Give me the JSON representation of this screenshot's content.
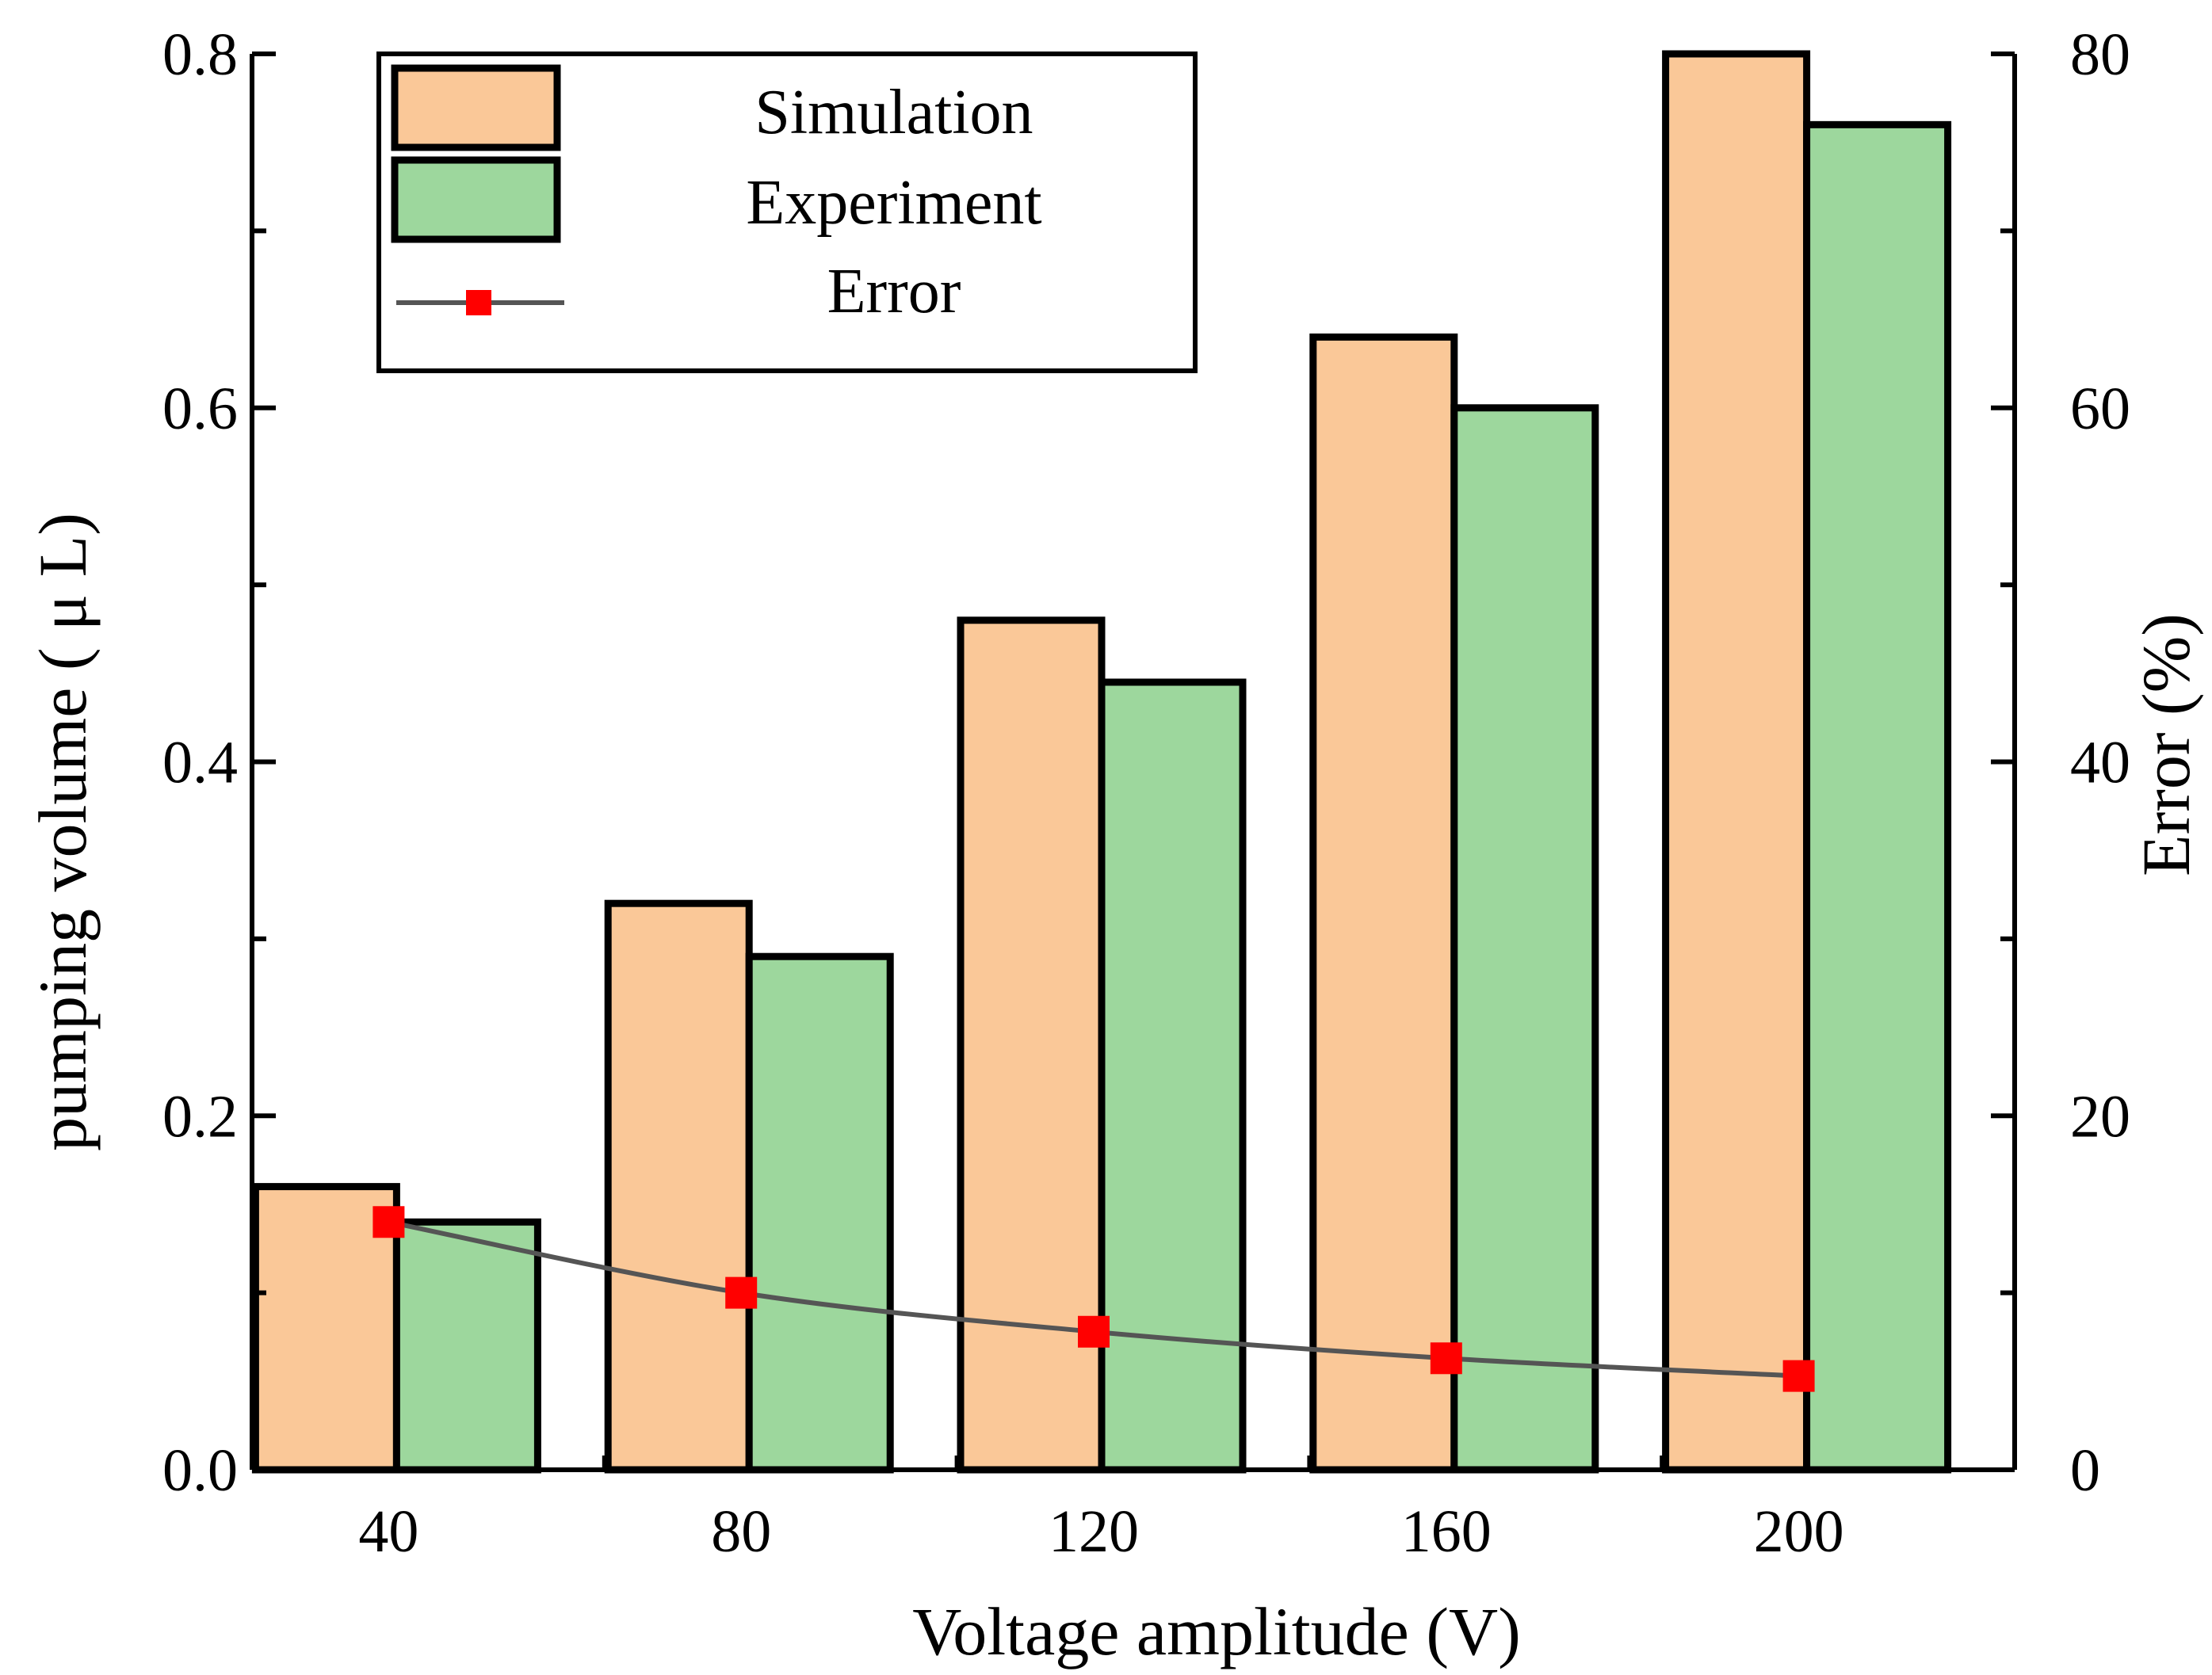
{
  "chart_data": {
    "type": "bar",
    "title": "",
    "categories": [
      "40",
      "80",
      "120",
      "160",
      "200"
    ],
    "xlabel": "Voltage amplitude (V)",
    "ylabel": "pumping volume ( μ L)",
    "y2label": "Error (%)",
    "ylim": [
      0,
      0.8
    ],
    "y2lim": [
      0,
      80
    ],
    "y_ticks": [
      "0.0",
      "0.2",
      "0.4",
      "0.6",
      "0.8"
    ],
    "y2_ticks": [
      "0",
      "20",
      "40",
      "60",
      "80"
    ],
    "series": [
      {
        "name": "Simulation",
        "type": "bar",
        "axis": "left",
        "color": "#FAC898",
        "values": [
          0.16,
          0.32,
          0.48,
          0.64,
          0.8
        ]
      },
      {
        "name": "Experiment",
        "type": "bar",
        "axis": "left",
        "color": "#9DD79D",
        "values": [
          0.14,
          0.29,
          0.445,
          0.6,
          0.76
        ]
      },
      {
        "name": "Error",
        "type": "line",
        "axis": "right",
        "line_color": "#555555",
        "marker_color": "#FF0000",
        "marker": "square",
        "values": [
          14.0,
          10.0,
          7.8,
          6.3,
          5.3
        ]
      }
    ],
    "legend": {
      "placement": "top-left",
      "entries": [
        "Simulation",
        "Experiment",
        "Error"
      ]
    },
    "grid": false
  }
}
